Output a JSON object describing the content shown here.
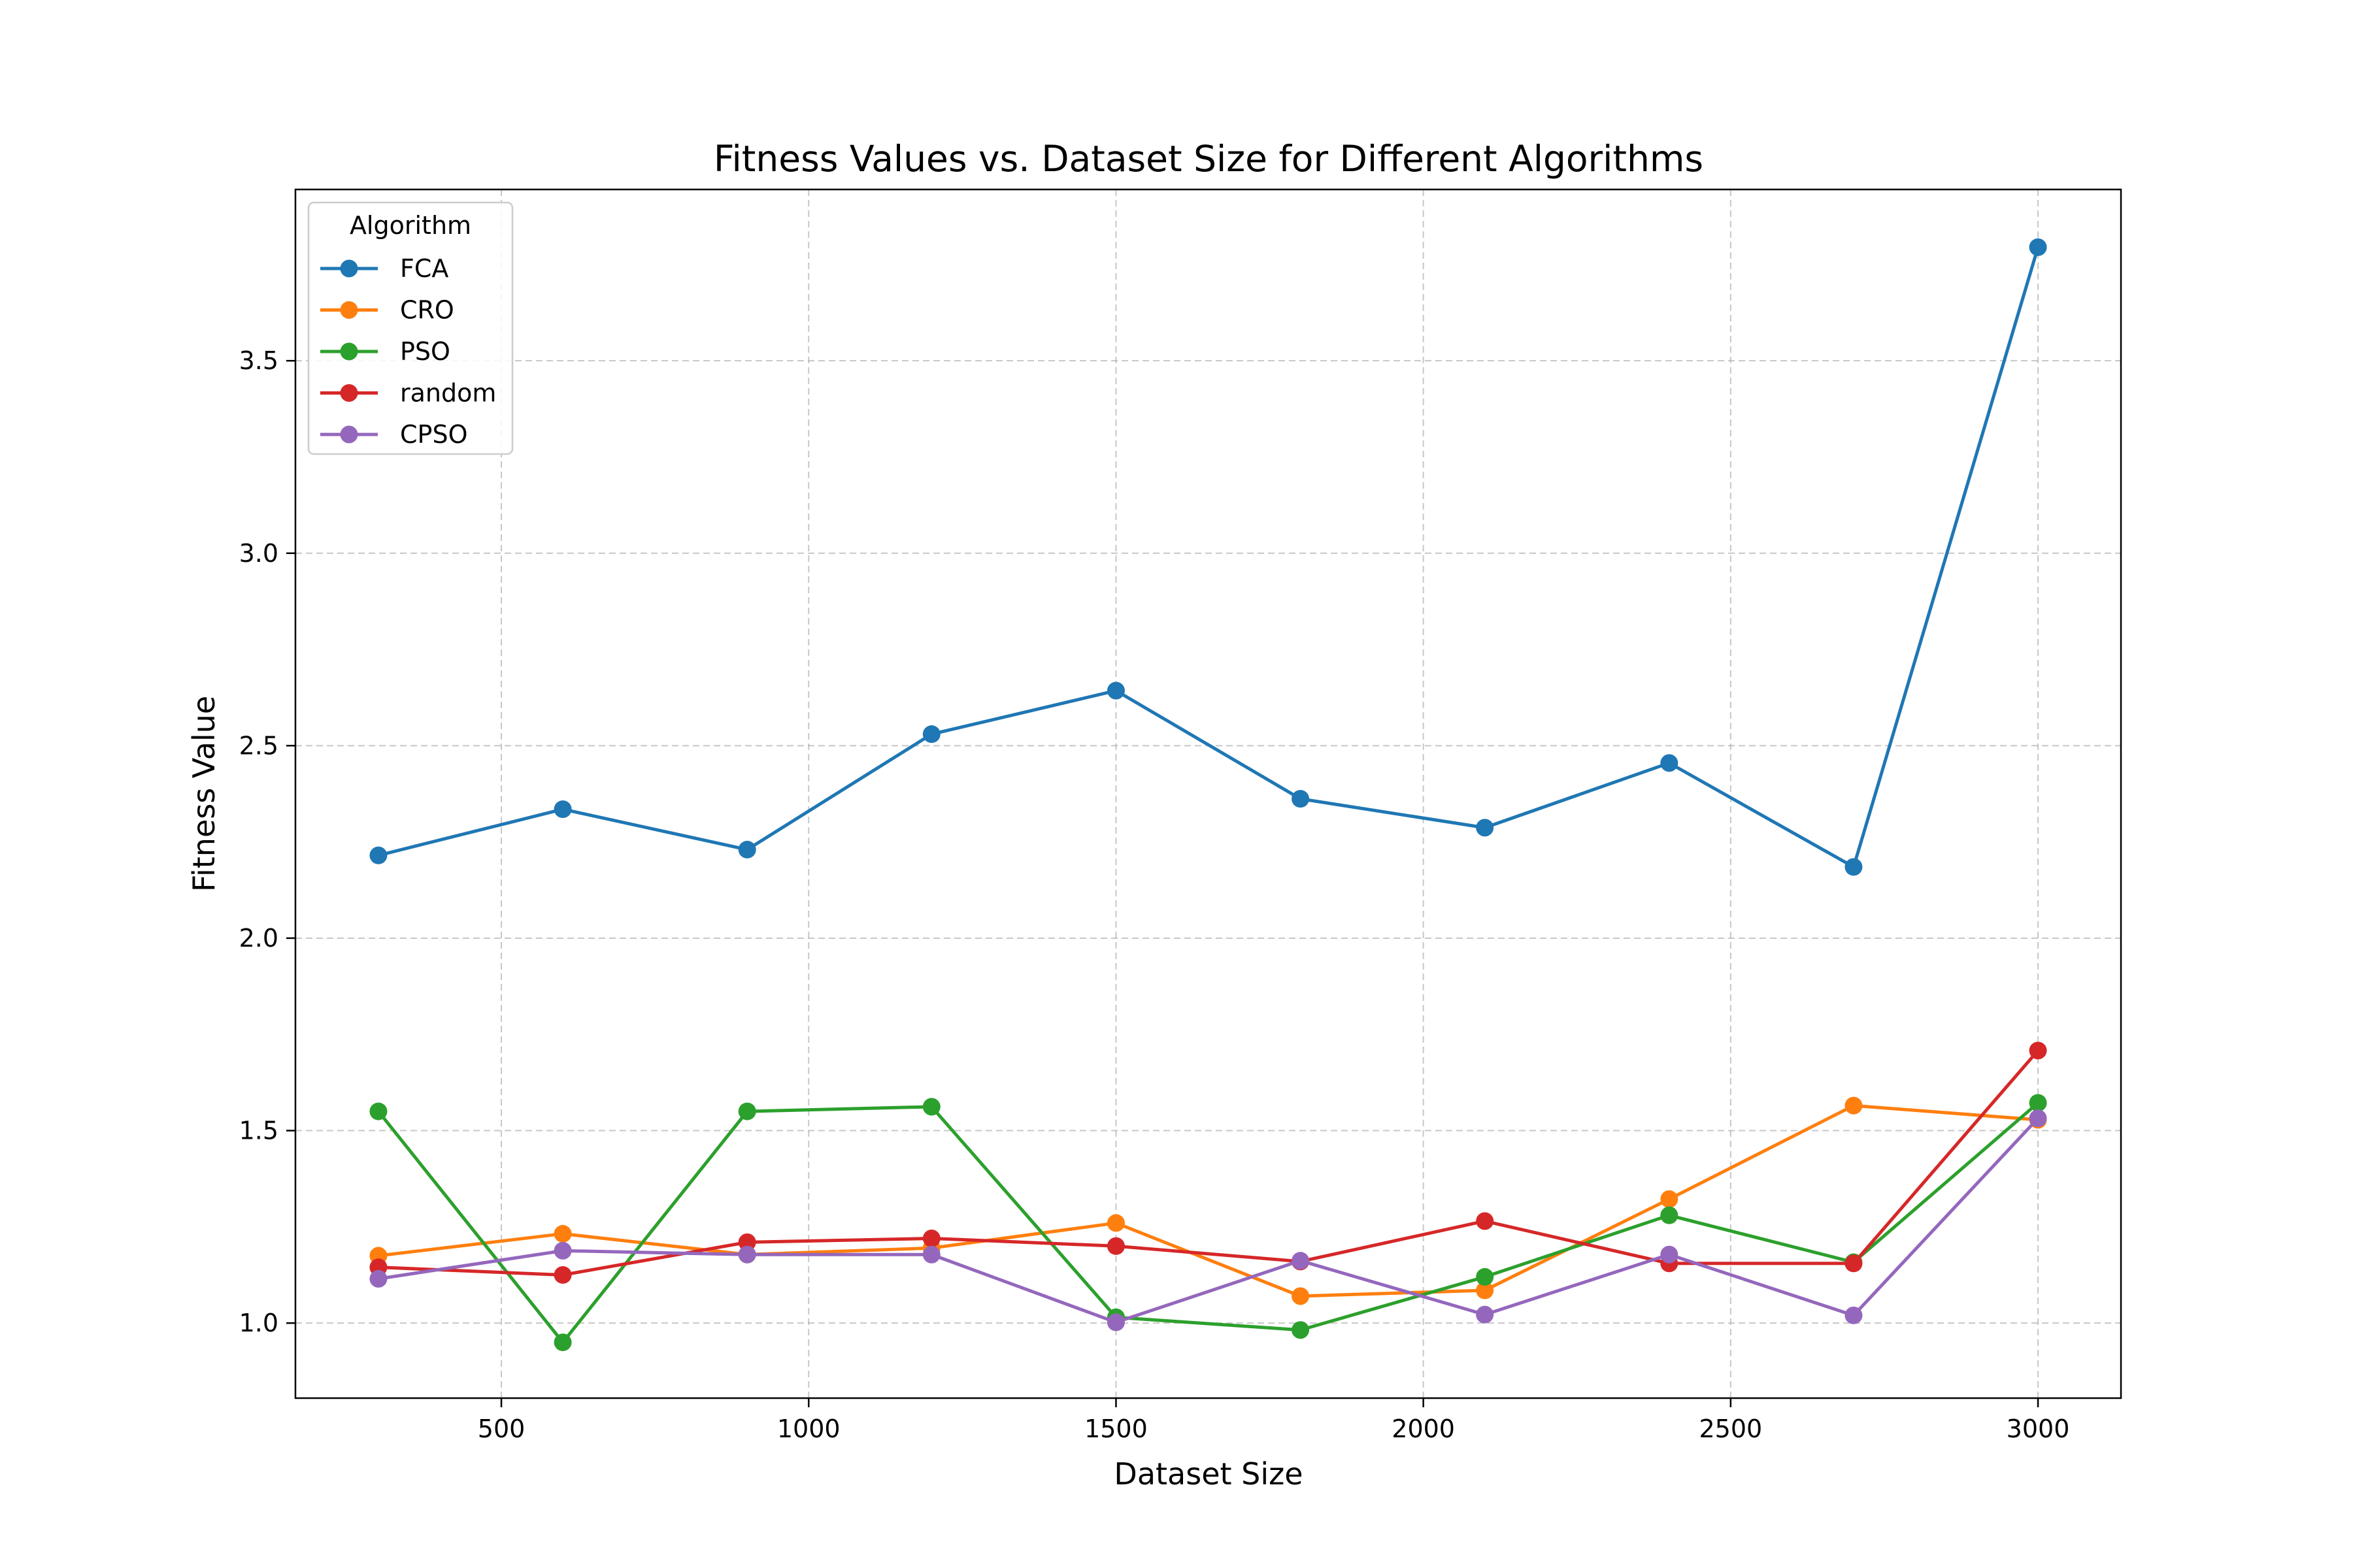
{
  "chart_data": {
    "type": "line",
    "title": "Fitness Values vs. Dataset Size for Different Algorithms",
    "xlabel": "Dataset Size",
    "ylabel": "Fitness Value",
    "x": [
      300,
      600,
      900,
      1200,
      1500,
      1800,
      2100,
      2400,
      2700,
      3000
    ],
    "xlim": [
      165,
      3135
    ],
    "ylim": [
      0.805,
      3.945
    ],
    "xticks": [
      500,
      1000,
      1500,
      2000,
      2500,
      3000
    ],
    "yticks": [
      1.0,
      1.5,
      2.0,
      2.5,
      3.0,
      3.5
    ],
    "xtick_labels": [
      "500",
      "1000",
      "1500",
      "2000",
      "2500",
      "3000"
    ],
    "ytick_labels": [
      "1.0",
      "1.5",
      "2.0",
      "2.5",
      "3.0",
      "3.5"
    ],
    "grid": true,
    "legend": {
      "title": "Algorithm",
      "placement": "upper-left"
    },
    "series": [
      {
        "name": "FCA",
        "color": "#1f77b4",
        "values": [
          2.215,
          2.335,
          2.23,
          2.53,
          2.643,
          2.362,
          2.287,
          2.455,
          2.185,
          3.795
        ]
      },
      {
        "name": "CRO",
        "color": "#ff7f0e",
        "values": [
          1.175,
          1.232,
          1.178,
          1.195,
          1.26,
          1.07,
          1.085,
          1.322,
          1.565,
          1.528
        ]
      },
      {
        "name": "PSO",
        "color": "#2ca02c",
        "values": [
          1.55,
          0.95,
          1.55,
          1.562,
          1.015,
          0.982,
          1.12,
          1.28,
          1.158,
          1.572
        ]
      },
      {
        "name": "random",
        "color": "#d62728",
        "values": [
          1.145,
          1.125,
          1.21,
          1.22,
          1.2,
          1.16,
          1.265,
          1.155,
          1.155,
          1.708
        ]
      },
      {
        "name": "CPSO",
        "color": "#9467bd",
        "values": [
          1.115,
          1.188,
          1.178,
          1.178,
          1.002,
          1.162,
          1.022,
          1.178,
          1.02,
          1.532
        ]
      }
    ]
  }
}
